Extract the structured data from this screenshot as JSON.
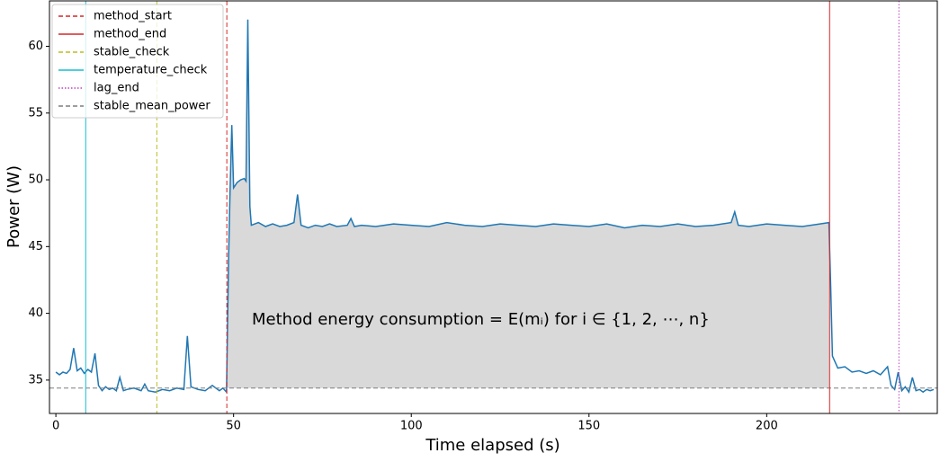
{
  "chart_data": {
    "type": "line",
    "xlabel": "Time elapsed (s)",
    "ylabel": "Power (W)",
    "annotation": "Method energy consumption = E(mᵢ) for i ∈ {1, 2, ⋯, n}",
    "color": "#1f77b4",
    "fill_color": "#d9d9d9",
    "x": [
      0,
      1,
      2,
      3,
      4,
      5,
      6,
      7,
      8,
      9,
      10,
      11,
      12,
      13,
      14,
      15,
      16,
      17,
      18,
      19,
      20,
      22,
      24,
      25,
      26,
      28,
      30,
      32,
      34,
      36,
      37,
      38,
      40,
      42,
      44,
      46,
      47,
      48,
      48.6,
      49,
      49.5,
      50,
      51,
      52,
      53,
      53.5,
      54,
      54.6,
      55,
      57,
      59,
      61,
      63,
      65,
      67,
      68,
      69,
      71,
      73,
      75,
      77,
      79,
      82,
      83,
      84,
      86,
      90,
      95,
      100,
      105,
      110,
      115,
      120,
      125,
      130,
      135,
      140,
      145,
      150,
      155,
      160,
      165,
      170,
      175,
      180,
      185,
      190,
      191,
      192,
      195,
      200,
      205,
      210,
      215,
      217.5,
      218,
      218.5,
      219,
      220,
      222,
      224,
      226,
      228,
      230,
      232,
      234,
      235,
      236,
      237,
      238,
      239,
      240,
      241,
      242,
      243,
      244,
      245,
      246,
      247
    ],
    "values": [
      35.6,
      35.4,
      35.6,
      35.5,
      35.8,
      37.4,
      35.7,
      35.9,
      35.5,
      35.8,
      35.6,
      37.0,
      34.6,
      34.2,
      34.5,
      34.3,
      34.4,
      34.2,
      35.2,
      34.2,
      34.3,
      34.4,
      34.2,
      34.7,
      34.2,
      34.1,
      34.3,
      34.2,
      34.4,
      34.3,
      38.3,
      34.5,
      34.3,
      34.2,
      34.6,
      34.2,
      34.4,
      34.1,
      44.0,
      49.0,
      54.1,
      49.4,
      49.8,
      50.0,
      50.1,
      49.9,
      62.0,
      48.0,
      46.6,
      46.8,
      46.5,
      46.7,
      46.5,
      46.6,
      46.8,
      48.9,
      46.6,
      46.4,
      46.6,
      46.5,
      46.7,
      46.5,
      46.6,
      47.1,
      46.5,
      46.6,
      46.5,
      46.7,
      46.6,
      46.5,
      46.8,
      46.6,
      46.5,
      46.7,
      46.6,
      46.5,
      46.7,
      46.6,
      46.5,
      46.7,
      46.4,
      46.6,
      46.5,
      46.7,
      46.5,
      46.6,
      46.8,
      47.6,
      46.6,
      46.5,
      46.7,
      46.6,
      46.5,
      46.7,
      46.8,
      42.0,
      36.8,
      36.5,
      35.9,
      36.0,
      35.6,
      35.7,
      35.5,
      35.7,
      35.4,
      36.0,
      34.6,
      34.3,
      35.6,
      34.2,
      34.5,
      34.1,
      35.2,
      34.2,
      34.3,
      34.1,
      34.3,
      34.2,
      34.3
    ],
    "vlines": [
      {
        "name": "method_start",
        "x": 48.1,
        "color": "#d62728",
        "style": "dashed"
      },
      {
        "name": "method_end",
        "x": 217.7,
        "color": "#d62728",
        "style": "solid"
      },
      {
        "name": "stable_check",
        "x": 28.4,
        "color": "#bcbd22",
        "style": "dashed"
      },
      {
        "name": "temperature_check",
        "x": 8.4,
        "color": "#17becf",
        "style": "solid"
      },
      {
        "name": "lag_end",
        "x": 237.2,
        "color": "#bf40bf",
        "style": "dotted"
      }
    ],
    "hlines": [
      {
        "name": "stable_mean_power",
        "y": 34.4,
        "color": "#7f7f7f",
        "style": "dashed"
      }
    ],
    "xlim": [
      -1.8,
      248
    ],
    "ylim": [
      32.5,
      63.4
    ],
    "xticks": [
      0,
      50,
      100,
      150,
      200
    ],
    "yticks": [
      35,
      40,
      45,
      50,
      55,
      60
    ],
    "legend": "upper left"
  }
}
